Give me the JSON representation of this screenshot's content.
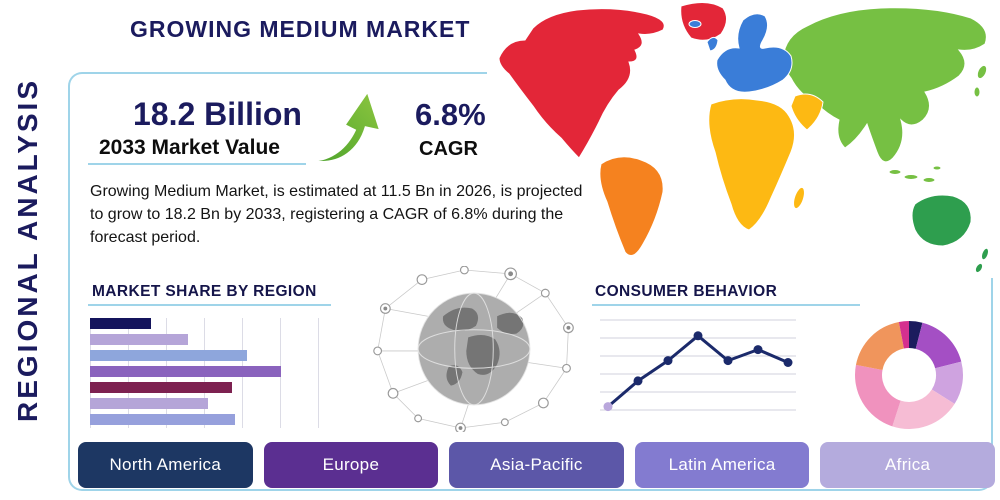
{
  "theme": {
    "navy": "#1b1b5e",
    "accent_line": "#9fd4e9",
    "text": "#141414",
    "arrow_green_dark": "#4ca32c",
    "arrow_green_light": "#8dc63f"
  },
  "sidebar": {
    "vertical_label": "REGIONAL ANALYSIS"
  },
  "header": {
    "title": "GROWING MEDIUM MARKET"
  },
  "stats": {
    "market_value": "18.2 Billion",
    "market_value_label": "2033 Market Value",
    "cagr_value": "6.8%",
    "cagr_label": "CAGR",
    "description": "Growing Medium Market, is estimated at 11.5 Bn in 2026, is projected to grow to 18.2 Bn by 2033, registering a CAGR of 6.8% during the forecast period."
  },
  "sections": {
    "market_share_title": "MARKET SHARE BY REGION",
    "consumer_behavior_title": "CONSUMER BEHAVIOR"
  },
  "map": {
    "colors": {
      "north_america": "#e32638",
      "greenland": "#e32638",
      "south_america": "#f5821f",
      "europe": "#3a7dd8",
      "africa": "#fdb913",
      "middle_east": "#fdb913",
      "asia": "#76c043",
      "australia": "#2e9e4e"
    }
  },
  "regions": [
    {
      "label": "North America",
      "color": "#1d3763"
    },
    {
      "label": "Europe",
      "color": "#5b2f91"
    },
    {
      "label": "Asia-Pacific",
      "color": "#5c57a8"
    },
    {
      "label": "Latin America",
      "color": "#837bd0"
    },
    {
      "label": "Africa",
      "color": "#b4abdd"
    }
  ],
  "chart_data": [
    {
      "id": "market_share",
      "type": "bar",
      "orientation": "horizontal",
      "title": "MARKET SHARE BY REGION",
      "values": [
        25,
        40,
        64,
        78,
        58,
        48,
        59
      ],
      "colors": [
        "#14145c",
        "#b5a5d8",
        "#8ea6dc",
        "#8a63bd",
        "#7d2150",
        "#b5a5d8",
        "#96a0dc"
      ],
      "xlim": [
        0,
        100
      ],
      "grid": "vertical"
    },
    {
      "id": "consumer_behavior",
      "type": "line",
      "title": "CONSUMER BEHAVIOR",
      "x": [
        1,
        2,
        3,
        4,
        5,
        6,
        7
      ],
      "values": [
        8,
        36,
        58,
        85,
        58,
        70,
        56
      ],
      "ylim": [
        0,
        100
      ],
      "color": "#1b2a6b",
      "first_marker_color": "#b9a7dc",
      "grid": "horizontal"
    },
    {
      "id": "consumer_segments",
      "type": "pie",
      "subtype": "donut",
      "values": [
        4,
        17,
        13,
        21,
        23,
        19,
        3
      ],
      "colors": [
        "#1c1c5e",
        "#a44fc4",
        "#cfa3e0",
        "#f6bcd4",
        "#f092be",
        "#f0955c",
        "#d4308f"
      ]
    }
  ]
}
